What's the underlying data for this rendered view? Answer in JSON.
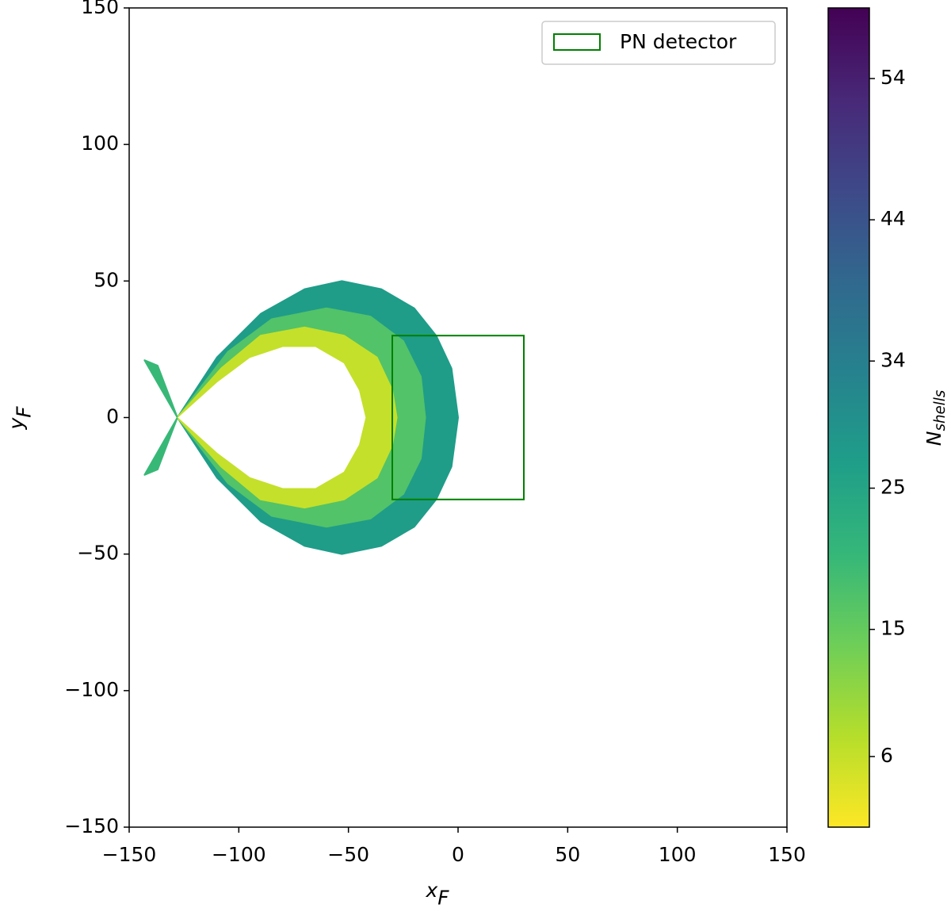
{
  "chart_data": {
    "type": "contour",
    "xlabel": {
      "base": "x",
      "sub": "F"
    },
    "ylabel": {
      "base": "y",
      "sub": "F"
    },
    "xlim": [
      -150,
      150
    ],
    "ylim": [
      -150,
      150
    ],
    "xticks": [
      {
        "value": -150,
        "label": "−150"
      },
      {
        "value": -100,
        "label": "−100"
      },
      {
        "value": -50,
        "label": "−50"
      },
      0,
      50,
      100,
      150
    ],
    "yticks": [
      {
        "value": -150,
        "label": "−150"
      },
      {
        "value": -100,
        "label": "−100"
      },
      {
        "value": -50,
        "label": "−50"
      },
      0,
      50,
      100,
      150
    ],
    "colormap": [
      "#fde725",
      "#b5de2b",
      "#6ece58",
      "#35b779",
      "#1f9e89",
      "#26828e",
      "#31688e",
      "#3e4989",
      "#482878",
      "#440154"
    ],
    "colorbar": {
      "label": {
        "base": "N",
        "sub": "shells"
      },
      "lim": [
        1,
        59
      ],
      "ticks": [
        6,
        15,
        25,
        34,
        44,
        54
      ]
    },
    "contours": [
      {
        "level": 27,
        "x": [
          -128,
          -110,
          -90,
          -70,
          -53,
          -35,
          -20,
          -10,
          -3,
          0,
          -3,
          -10,
          -20,
          -35,
          -53,
          -70,
          -90,
          -110
        ],
        "y": [
          0,
          22,
          38,
          47,
          50,
          47,
          40,
          30,
          18,
          0,
          -18,
          -30,
          -40,
          -47,
          -50,
          -47,
          -38,
          -22
        ]
      },
      {
        "level": 17,
        "x": [
          -128,
          -105,
          -85,
          -60,
          -40,
          -25,
          -17,
          -15,
          -17,
          -25,
          -40,
          -60,
          -85,
          -105
        ],
        "y": [
          0,
          24,
          36,
          40,
          37,
          28,
          15,
          0,
          -15,
          -28,
          -37,
          -40,
          -36,
          -24
        ]
      },
      {
        "level": 6,
        "x": [
          -128,
          -108,
          -90,
          -70,
          -52,
          -37,
          -30,
          -28,
          -30,
          -37,
          -52,
          -70,
          -90,
          -108
        ],
        "y": [
          0,
          18,
          30,
          33,
          30,
          22,
          10,
          0,
          -10,
          -22,
          -30,
          -33,
          -30,
          -18
        ]
      },
      {
        "level": 20,
        "x": [
          -128,
          -143,
          -137
        ],
        "y": [
          0,
          21,
          19
        ]
      },
      {
        "level": 20,
        "x": [
          -128,
          -143,
          -137
        ],
        "y": [
          0,
          -21,
          -19
        ]
      }
    ],
    "hole": {
      "x": [
        -128,
        -110,
        -95,
        -80,
        -65,
        -52,
        -45,
        -42,
        -45,
        -52,
        -65,
        -80,
        -95,
        -110
      ],
      "y": [
        0,
        13,
        22,
        26,
        26,
        20,
        10,
        0,
        -10,
        -20,
        -26,
        -26,
        -22,
        -13
      ]
    },
    "detector": {
      "name": "PN detector",
      "color": "#008000",
      "x": [
        -30,
        30
      ],
      "y": [
        -30,
        30
      ]
    },
    "legend": "upper right"
  }
}
